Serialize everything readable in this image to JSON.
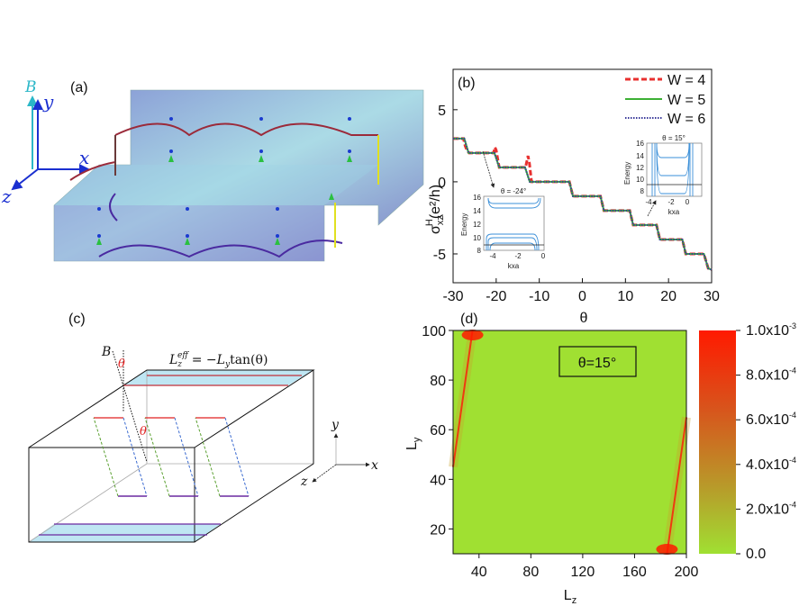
{
  "panels": {
    "a": {
      "label": "(a)",
      "axes": {
        "B": "B",
        "x": "x",
        "y": "y",
        "z": "z"
      }
    },
    "b": {
      "label": "(b)"
    },
    "c": {
      "label": "(c)",
      "B": "B",
      "theta": "θ",
      "formula": {
        "lhs": "L",
        "lhs_sub": "z",
        "lhs_sup": "eff",
        "rhs": "= −L",
        "rhs_sub": "y",
        "rhs_tail": "tan(θ)"
      },
      "axes": {
        "x": "x",
        "y": "y",
        "z": "z"
      }
    },
    "d": {
      "label": "(d)"
    }
  },
  "chart_data": [
    {
      "type": "line",
      "panel": "b",
      "xlabel": "θ",
      "ylabel": {
        "main": "σ",
        "sub": "xz",
        "sup": "H",
        "unit": "(e²/h)"
      },
      "xlim": [
        -30,
        30
      ],
      "ylim": [
        -7,
        7.8
      ],
      "xticks": [
        -30,
        -20,
        -10,
        0,
        10,
        20,
        30
      ],
      "yticks": [
        5,
        0,
        -5
      ],
      "legend": "top-right",
      "colors": {
        "W4": "#e8302f",
        "W5": "#3cb034",
        "W6": "#3a3a9a"
      },
      "series": [
        {
          "name": "W = 4",
          "style": "dashed",
          "points": [
            [
              -30,
              3
            ],
            [
              -27.6,
              3
            ],
            [
              -27.2,
              2.5
            ],
            [
              -26.8,
              2.2
            ],
            [
              -26.3,
              2
            ],
            [
              -20.6,
              2
            ],
            [
              -20.3,
              2.4
            ],
            [
              -20,
              2.2
            ],
            [
              -19.3,
              1
            ],
            [
              -13.2,
              1
            ],
            [
              -12.6,
              1.8
            ],
            [
              -12.3,
              1.3
            ],
            [
              -11.8,
              0
            ],
            [
              -3,
              0
            ],
            [
              -2.2,
              -1
            ],
            [
              4.2,
              -1
            ],
            [
              5,
              -2
            ],
            [
              11,
              -2
            ],
            [
              11.8,
              -3
            ],
            [
              17.2,
              -3
            ],
            [
              18,
              -4
            ],
            [
              23.2,
              -4
            ],
            [
              24,
              -5
            ],
            [
              28.2,
              -5
            ],
            [
              29.2,
              -6
            ],
            [
              30,
              -6.1
            ]
          ]
        },
        {
          "name": "W = 5",
          "style": "solid",
          "points": [
            [
              -30,
              3
            ],
            [
              -27.4,
              3
            ],
            [
              -26.4,
              2
            ],
            [
              -20.4,
              2
            ],
            [
              -19.3,
              1
            ],
            [
              -13.3,
              1
            ],
            [
              -12.2,
              0
            ],
            [
              -3,
              0
            ],
            [
              -2.2,
              -1
            ],
            [
              4.2,
              -1
            ],
            [
              5,
              -2
            ],
            [
              11,
              -2
            ],
            [
              11.8,
              -3
            ],
            [
              17.2,
              -3
            ],
            [
              18,
              -4
            ],
            [
              23.2,
              -4
            ],
            [
              24,
              -5
            ],
            [
              28.2,
              -5
            ],
            [
              29.2,
              -6
            ],
            [
              30,
              -6.1
            ]
          ]
        },
        {
          "name": "W = 6",
          "style": "dotted",
          "points": [
            [
              -30,
              3
            ],
            [
              -27.4,
              3
            ],
            [
              -26.4,
              2
            ],
            [
              -20.4,
              2
            ],
            [
              -19.3,
              1
            ],
            [
              -13.3,
              1
            ],
            [
              -12.2,
              0
            ],
            [
              -3,
              0
            ],
            [
              -2.2,
              -1
            ],
            [
              4.2,
              -1
            ],
            [
              5,
              -2
            ],
            [
              11,
              -2
            ],
            [
              11.8,
              -3
            ],
            [
              17.2,
              -3
            ],
            [
              18,
              -4
            ],
            [
              23.2,
              -4
            ],
            [
              24,
              -5
            ],
            [
              28.2,
              -5
            ],
            [
              29.2,
              -6
            ],
            [
              30,
              -6.1
            ]
          ]
        }
      ],
      "insets": [
        {
          "title": "θ = -24°",
          "xlabel": "kxa",
          "ylabel": "Energy",
          "xticks": [
            -4,
            -2,
            0
          ],
          "yticks": [
            16,
            14,
            12,
            10,
            8
          ],
          "xlim": [
            -5,
            0
          ],
          "ylim": [
            8,
            16
          ]
        },
        {
          "title": "θ = 15°",
          "xlabel": "kxa",
          "ylabel": "Energy",
          "xticks": [
            -4,
            -2,
            0
          ],
          "yticks": [
            16,
            14,
            12,
            10,
            8
          ],
          "xlim": [
            -5,
            1
          ],
          "ylim": [
            7,
            16
          ]
        }
      ]
    },
    {
      "type": "heatmap",
      "panel": "d",
      "xlabel": {
        "main": "L",
        "sub": "z"
      },
      "ylabel": {
        "main": "L",
        "sub": "y"
      },
      "xlim": [
        20,
        200
      ],
      "ylim": [
        10,
        100
      ],
      "xticks": [
        40,
        80,
        120,
        160,
        200
      ],
      "yticks": [
        20,
        40,
        60,
        80,
        100
      ],
      "annotation": "θ=15°",
      "colorbar": {
        "range": [
          0,
          0.001
        ],
        "ticks": [
          {
            "base": "0.0",
            "exp": ""
          },
          {
            "base": "2.0x10",
            "exp": "-4"
          },
          {
            "base": "4.0x10",
            "exp": "-4"
          },
          {
            "base": "6.0x10",
            "exp": "-4"
          },
          {
            "base": "8.0x10",
            "exp": "-4"
          },
          {
            "base": "1.0x10",
            "exp": "-3"
          }
        ],
        "low_color": "#a0e032",
        "high_color": "#ff1a00"
      },
      "ridges": [
        {
          "from": [
            35,
            100
          ],
          "to": [
            20,
            45
          ]
        },
        {
          "from": [
            185,
            10
          ],
          "to": [
            200,
            65
          ]
        }
      ]
    }
  ]
}
